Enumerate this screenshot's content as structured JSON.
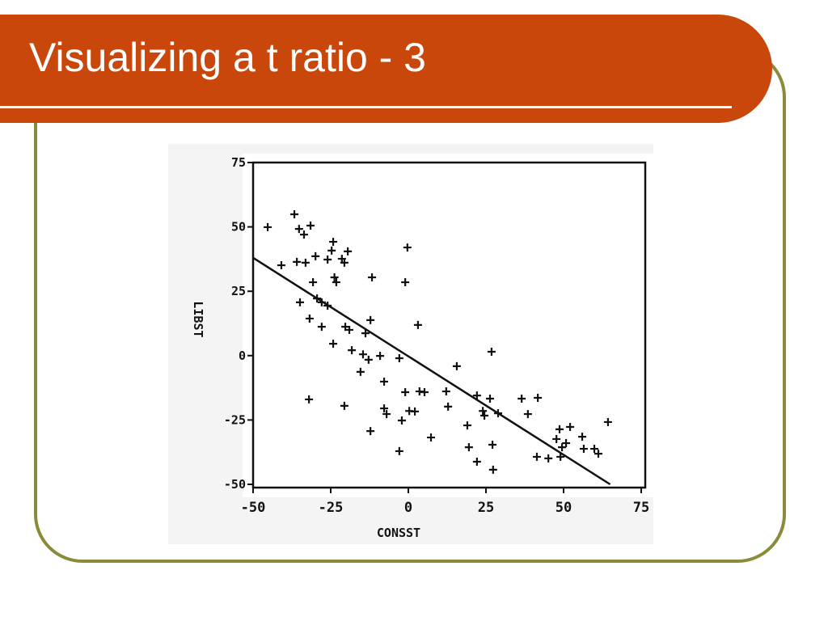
{
  "chart_data": {
    "type": "scatter",
    "title": "Visualizing a t ratio - 3",
    "x_label": "CONSST",
    "y_label": "LIBST",
    "xlim": [
      -50,
      75
    ],
    "ylim": [
      -50,
      75
    ],
    "xticks": [
      -50,
      -25,
      0,
      25,
      50,
      75
    ],
    "yticks": [
      -50,
      -25,
      0,
      25,
      50,
      75
    ],
    "color": "#111111",
    "x": [
      -45.3,
      -36.7,
      -35.2,
      -33.6,
      -31.5,
      -40.9,
      -35.9,
      -33.1,
      -29.9,
      -34.9,
      -30.7,
      -29.4,
      -27.9,
      -26.0,
      -31.8,
      -27.9,
      -32.0,
      -24.2,
      -26.0,
      -24.2,
      -24.7,
      -23.8,
      -21.4,
      -19.5,
      -20.6,
      -23.2,
      -20.3,
      -19.0,
      -18.2,
      -15.4,
      -14.6,
      -12.8,
      -13.8,
      -12.2,
      -11.7,
      -20.6,
      -12.2,
      -9.1,
      -7.8,
      -7.8,
      -7.0,
      -2.9,
      -2.1,
      -1.0,
      -1.0,
      -0.3,
      0.3,
      2.1,
      3.1,
      3.6,
      5.2,
      -2.9,
      7.3,
      12.2,
      12.8,
      15.6,
      19.0,
      19.5,
      22.1,
      22.1,
      24.0,
      24.5,
      26.8,
      26.3,
      27.1,
      27.3,
      28.9,
      36.5,
      38.5,
      41.7,
      41.4,
      45.1,
      47.7,
      48.7,
      49.5,
      50.8,
      49.0,
      52.1,
      56.0,
      56.5,
      59.9,
      61.2,
      64.3
    ],
    "values": [
      49.9,
      54.9,
      49.2,
      47.0,
      50.5,
      35.1,
      36.4,
      36.1,
      38.6,
      20.7,
      28.5,
      22.2,
      20.7,
      19.4,
      14.4,
      11.2,
      -17.0,
      4.6,
      37.3,
      44.2,
      40.8,
      30.4,
      37.6,
      40.5,
      36.1,
      28.5,
      11.2,
      10.0,
      2.1,
      -6.3,
      0.5,
      -1.6,
      8.7,
      13.8,
      30.4,
      -19.5,
      -29.3,
      -0.1,
      -10.1,
      -20.5,
      -22.7,
      -1.0,
      -25.2,
      -14.2,
      28.5,
      42.0,
      -21.5,
      -21.7,
      11.9,
      -13.9,
      -14.2,
      -37.1,
      -31.8,
      -13.9,
      -19.8,
      -4.1,
      -27.1,
      -35.6,
      -41.2,
      -15.5,
      -21.5,
      -23.3,
      1.5,
      -16.7,
      -34.6,
      -44.3,
      -22.4,
      -16.7,
      -22.7,
      -16.4,
      -39.3,
      -39.9,
      -32.4,
      -28.6,
      -35.6,
      -34.0,
      -39.3,
      -27.7,
      -31.5,
      -36.2,
      -36.2,
      -38.1,
      -25.8
    ],
    "fit_line": {
      "x": [
        -50,
        65
      ],
      "values": [
        38,
        -50
      ]
    }
  }
}
